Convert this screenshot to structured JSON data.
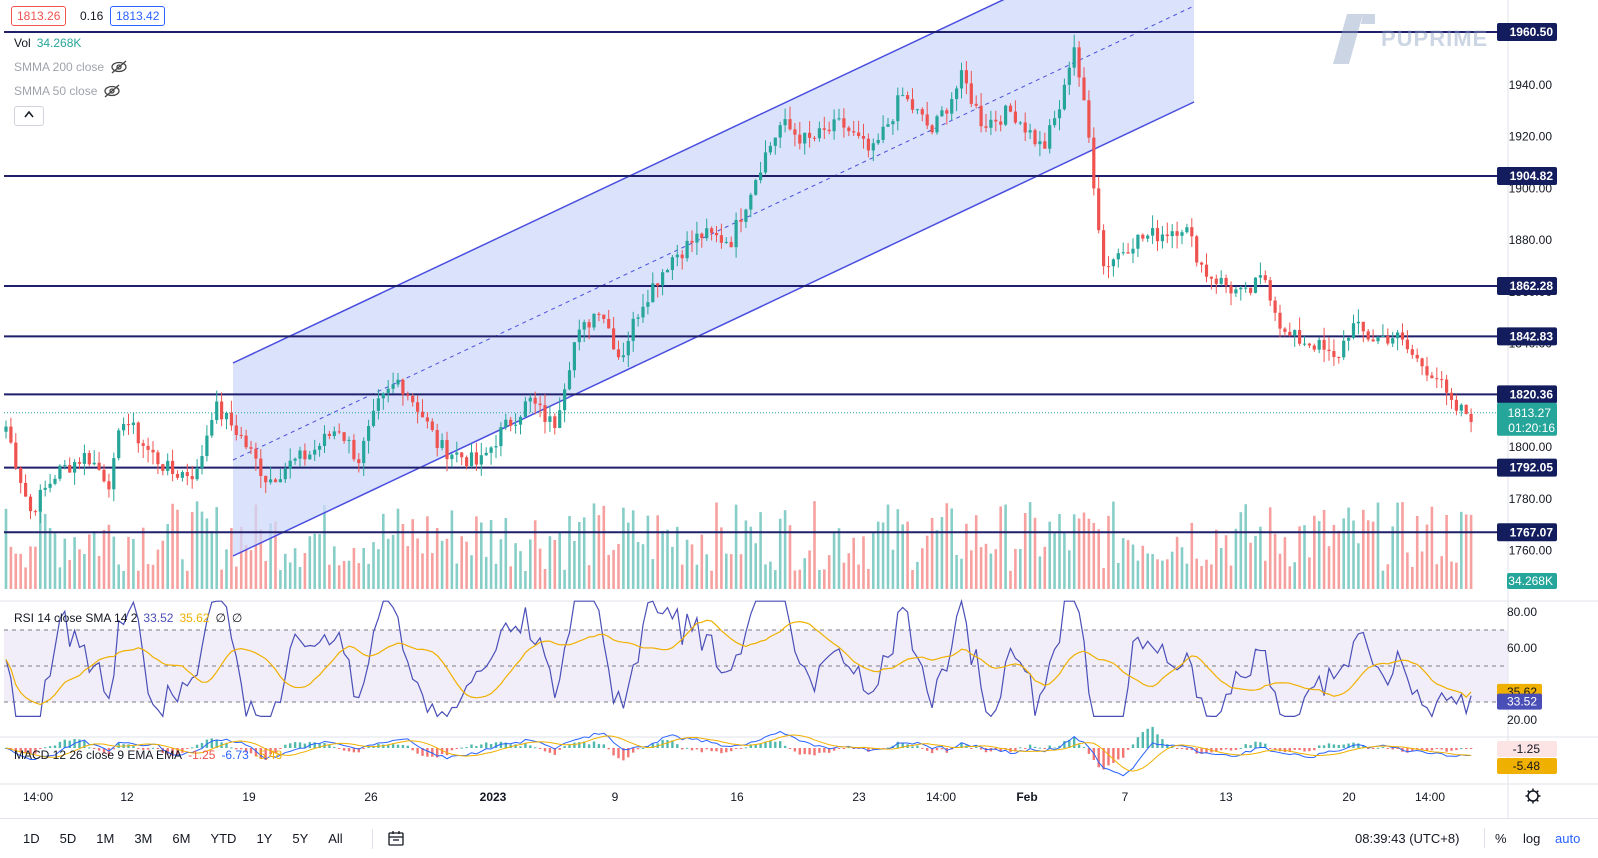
{
  "header": {
    "bid": "1813.26",
    "spread": "0.16",
    "ask": "1813.42",
    "vol_label": "Vol",
    "vol_value": "34.268K",
    "smma200": "SMMA 200 close",
    "smma50": "SMMA 50 close",
    "collapse_icon": "chevron-up-icon"
  },
  "watermark": {
    "text": "PUPRIME",
    "icon": "puprime-logo-icon"
  },
  "price_axis": {
    "ticks": [
      "1940.00",
      "1920.00",
      "1900.00",
      "1880.00",
      "1860.00",
      "1840.00",
      "1800.00",
      "1780.00",
      "1760.00"
    ],
    "current_price": "1813.27",
    "countdown": "01:20:16",
    "volume_label": "34.268K"
  },
  "levels": [
    {
      "label": "1960.50",
      "value": 1960.5
    },
    {
      "label": "1904.82",
      "value": 1904.82
    },
    {
      "label": "1862.28",
      "value": 1862.28
    },
    {
      "label": "1842.83",
      "value": 1842.83
    },
    {
      "label": "1820.36",
      "value": 1820.36
    },
    {
      "label": "1792.05",
      "value": 1792.05
    },
    {
      "label": "1767.07",
      "value": 1767.07
    }
  ],
  "rsi": {
    "label": "RSI 14 close SMA 14 2",
    "rsi_value": "33.52",
    "sma_value": "35.62",
    "extra1": "∅",
    "extra2": "∅",
    "ticks": [
      "80.00",
      "60.00",
      "20.00"
    ],
    "upper_band": 70,
    "lower_band": 30
  },
  "macd": {
    "label": "MACD 12 26 close 9 EMA EMA",
    "hist_value": "-1.25",
    "macd_value": "-6.73",
    "signal_value": "-5.48",
    "axis_hist": "-1.25",
    "axis_signal": "-5.48"
  },
  "time_axis": [
    "14:00",
    "12",
    "19",
    "26",
    "2023",
    "9",
    "16",
    "23",
    "14:00",
    "Feb",
    "7",
    "13",
    "20",
    "14:00"
  ],
  "bottom_bar": {
    "timeframes": [
      "1D",
      "5D",
      "1M",
      "3M",
      "6M",
      "YTD",
      "1Y",
      "5Y",
      "All"
    ],
    "compare_icon": "calendar-range-icon",
    "clock": "08:39:43 (UTC+8)",
    "percent": "%",
    "log": "log",
    "auto": "auto"
  },
  "colors": {
    "up": "#26a69a",
    "down": "#ef5350",
    "level": "#1f1f6b",
    "channel_fill": "#cdd8fb",
    "channel_line": "#4a4ee0",
    "rsi_line": "#4a4fb8",
    "rsi_sma": "#f0b000",
    "label_bg": "#131c5c"
  },
  "chart_data": {
    "type": "candlestick",
    "symbol_price_range": [
      1750,
      1970
    ],
    "price_key_points": [
      [
        0,
        1808
      ],
      [
        12,
        1775
      ],
      [
        25,
        1790
      ],
      [
        40,
        1797
      ],
      [
        52,
        1786
      ],
      [
        58,
        1812
      ],
      [
        70,
        1799
      ],
      [
        82,
        1790
      ],
      [
        95,
        1790
      ],
      [
        103,
        1816
      ],
      [
        115,
        1806
      ],
      [
        130,
        1787
      ],
      [
        140,
        1793
      ],
      [
        152,
        1798
      ],
      [
        165,
        1808
      ],
      [
        175,
        1795
      ],
      [
        185,
        1816
      ],
      [
        195,
        1826
      ],
      [
        205,
        1815
      ],
      [
        215,
        1800
      ],
      [
        225,
        1797
      ],
      [
        235,
        1793
      ],
      [
        245,
        1805
      ],
      [
        260,
        1818
      ],
      [
        272,
        1808
      ],
      [
        282,
        1840
      ],
      [
        295,
        1855
      ],
      [
        305,
        1834
      ],
      [
        315,
        1855
      ],
      [
        330,
        1873
      ],
      [
        345,
        1882
      ],
      [
        360,
        1880
      ],
      [
        375,
        1910
      ],
      [
        385,
        1925
      ],
      [
        398,
        1918
      ],
      [
        415,
        1925
      ],
      [
        430,
        1913
      ],
      [
        445,
        1936
      ],
      [
        460,
        1922
      ],
      [
        475,
        1943
      ],
      [
        485,
        1925
      ],
      [
        500,
        1930
      ],
      [
        515,
        1915
      ],
      [
        525,
        1935
      ],
      [
        530,
        1958
      ],
      [
        538,
        1918
      ],
      [
        545,
        1870
      ],
      [
        560,
        1880
      ],
      [
        575,
        1883
      ],
      [
        585,
        1886
      ],
      [
        595,
        1868
      ],
      [
        605,
        1863
      ],
      [
        615,
        1858
      ],
      [
        625,
        1866
      ],
      [
        635,
        1843
      ],
      [
        650,
        1840
      ],
      [
        660,
        1833
      ],
      [
        668,
        1847
      ],
      [
        678,
        1842
      ],
      [
        690,
        1843
      ],
      [
        700,
        1834
      ],
      [
        710,
        1828
      ],
      [
        718,
        1815
      ],
      [
        730,
        1812
      ]
    ],
    "rsi_range": [
      20,
      88
    ],
    "rsi_last": 33.52,
    "rsi_sma_last": 35.62,
    "macd_last": -6.73,
    "signal_last": -5.48,
    "histogram_last": -1.25
  }
}
